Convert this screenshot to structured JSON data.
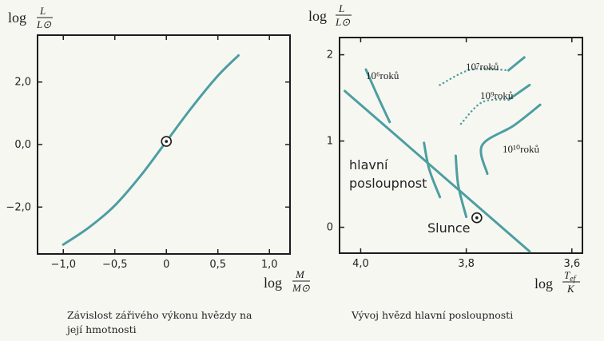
{
  "chart_data": [
    {
      "type": "line",
      "ylabel_prefix": "log",
      "ylabel_num": "L",
      "ylabel_den": "L⊙",
      "xlabel_prefix": "log",
      "xlabel_num": "M",
      "xlabel_den": "M⊙",
      "xticks": [
        "−1,0",
        "−0,5",
        "0",
        "0,5",
        "1,0"
      ],
      "xtick_values": [
        -1.0,
        -0.5,
        0,
        0.5,
        1.0
      ],
      "yticks": [
        "2,0",
        "0,0",
        "−2,0"
      ],
      "ytick_values": [
        2.0,
        0.0,
        -2.0
      ],
      "xlim": [
        -1.25,
        1.2
      ],
      "ylim": [
        -3.5,
        3.5
      ],
      "series": [
        {
          "x": [
            -1.0,
            -0.75,
            -0.5,
            -0.25,
            0.0,
            0.25,
            0.5,
            0.7
          ],
          "y": [
            -3.2,
            -2.65,
            -1.95,
            -1.0,
            0.1,
            1.2,
            2.2,
            2.85
          ]
        }
      ],
      "sun_marker": {
        "x": 0.0,
        "y": 0.1
      },
      "caption_lines": [
        "Závislost zářivého výkonu hvězdy na",
        "její hmotnosti"
      ]
    },
    {
      "type": "line",
      "ylabel_prefix": "log",
      "ylabel_num": "L",
      "ylabel_den": "L⊙",
      "xlabel_prefix": "log",
      "xlabel_num": "T",
      "xlabel_num_sub": "ef",
      "xlabel_den": "K",
      "x_reversed": true,
      "xticks": [
        "4,0",
        "3,8",
        "3,6"
      ],
      "xtick_values": [
        4.0,
        3.8,
        3.6
      ],
      "yticks": [
        "2",
        "1",
        "0"
      ],
      "ytick_values": [
        2,
        1,
        0
      ],
      "xlim": [
        4.04,
        3.58
      ],
      "ylim": [
        -0.3,
        2.2
      ],
      "main_sequence": {
        "x": [
          4.03,
          3.68
        ],
        "y": [
          1.58,
          -0.28
        ]
      },
      "main_sequence_label_lines": [
        "hlavní",
        "posloupnost"
      ],
      "isochrones": [
        {
          "label": "10⁶roků",
          "solid": [
            [
              3.99,
              1.83
            ],
            [
              3.97,
              1.55
            ],
            [
              3.945,
              1.22
            ]
          ]
        },
        {
          "label": "10⁷roků",
          "solid_top": [
            [
              3.72,
              1.82
            ],
            [
              3.69,
              1.97
            ]
          ],
          "dotted": [
            [
              3.85,
              1.65
            ],
            [
              3.79,
              1.83
            ],
            [
              3.72,
              1.82
            ]
          ],
          "solid_bottom": [
            [
              3.88,
              0.98
            ],
            [
              3.87,
              0.67
            ],
            [
              3.85,
              0.35
            ]
          ]
        },
        {
          "label": "10⁹roků",
          "solid_top": [
            [
              3.72,
              1.48
            ],
            [
              3.68,
              1.65
            ]
          ],
          "dotted": [
            [
              3.81,
              1.2
            ],
            [
              3.77,
              1.45
            ],
            [
              3.72,
              1.48
            ]
          ],
          "solid_bottom": [
            [
              3.82,
              0.83
            ],
            [
              3.815,
              0.48
            ],
            [
              3.8,
              0.12
            ]
          ]
        },
        {
          "label": "10¹⁰roků",
          "solid": [
            [
              3.76,
              0.62
            ],
            [
              3.77,
              0.95
            ],
            [
              3.71,
              1.18
            ],
            [
              3.66,
              1.42
            ]
          ]
        }
      ],
      "sun_label": "Slunce",
      "sun_marker": {
        "x": 3.78,
        "y": 0.11
      },
      "caption_lines": [
        "Vývoj hvězd hlavní posloupnosti"
      ]
    }
  ],
  "colors": {
    "curve": "#4d9ea1",
    "axis": "#1c1c1c",
    "background": "#f7f7f2"
  }
}
